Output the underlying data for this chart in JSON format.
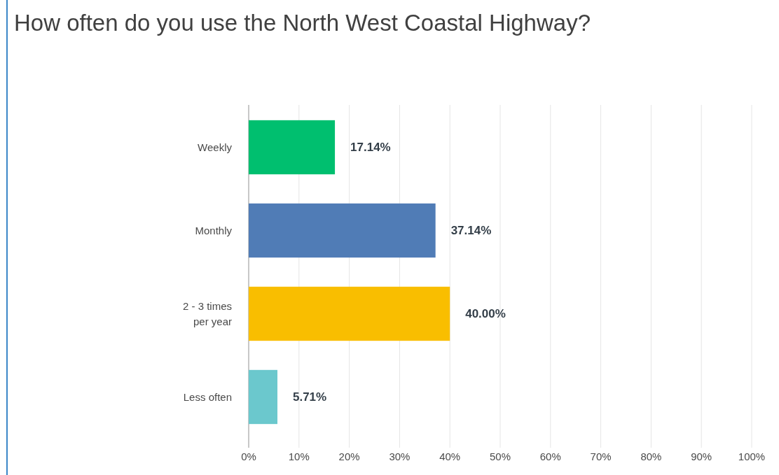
{
  "chart_data": {
    "type": "bar",
    "orientation": "horizontal",
    "title": "How often do you use the North West Coastal Highway?",
    "categories": [
      "Weekly",
      "Monthly",
      "2 - 3 times per year",
      "Less often"
    ],
    "values": [
      17.14,
      37.14,
      40.0,
      5.71
    ],
    "colors": [
      "#00bf6f",
      "#507cb6",
      "#f9be00",
      "#6bc8cd"
    ],
    "value_labels": [
      "17.14%",
      "37.14%",
      "40.00%",
      "5.71%"
    ],
    "xlim": [
      0,
      100
    ],
    "xticks": [
      {
        "value": 0,
        "label": "0%"
      },
      {
        "value": 10,
        "label": "10%"
      },
      {
        "value": 20,
        "label": "20%"
      },
      {
        "value": 30,
        "label": "30%"
      },
      {
        "value": 40,
        "label": "40%"
      },
      {
        "value": 50,
        "label": "50%"
      },
      {
        "value": 60,
        "label": "60%"
      },
      {
        "value": 70,
        "label": "70%"
      },
      {
        "value": 80,
        "label": "80%"
      },
      {
        "value": 90,
        "label": "90%"
      },
      {
        "value": 100,
        "label": "100%"
      }
    ],
    "grid": "x"
  }
}
